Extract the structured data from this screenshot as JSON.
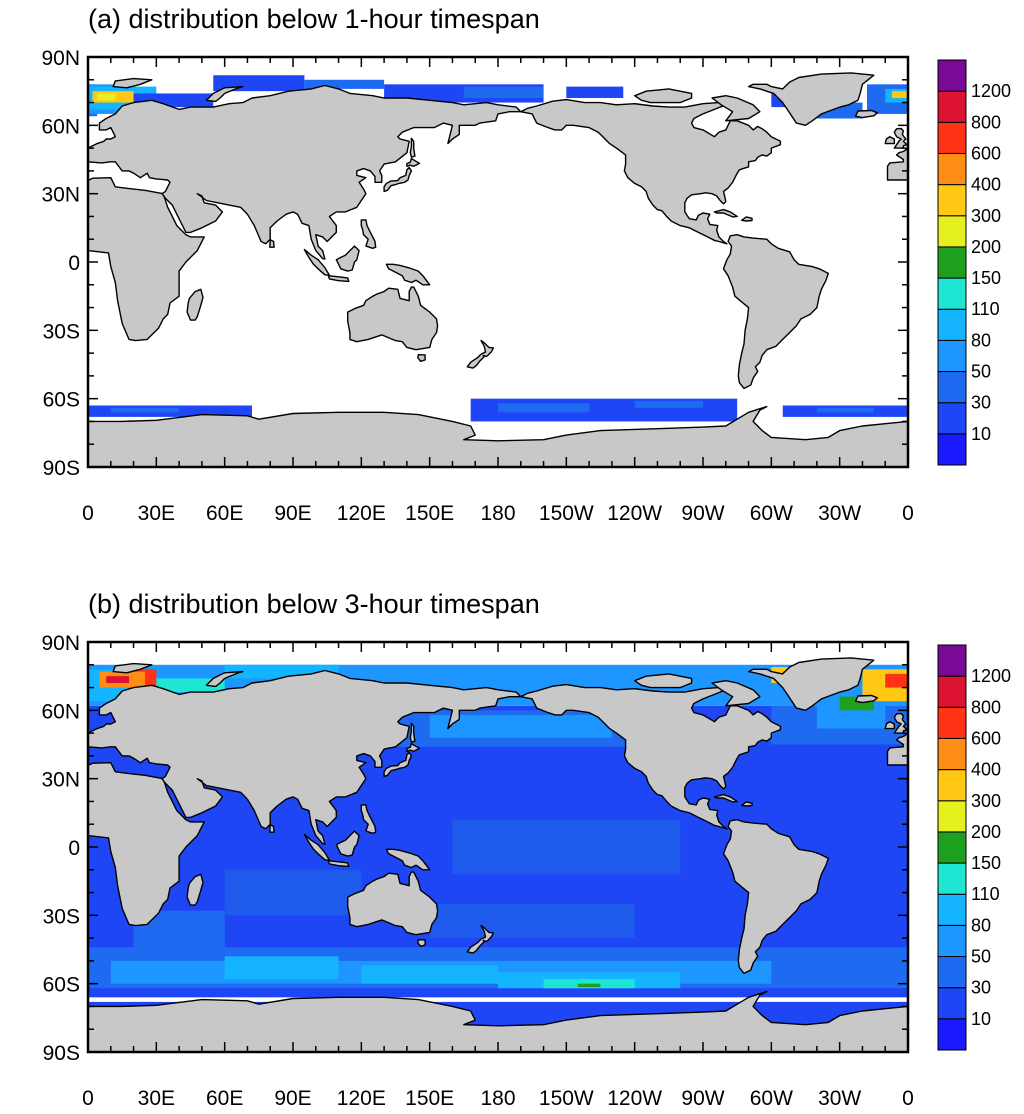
{
  "panels": [
    {
      "title": "(a) distribution below 1-hour timespan",
      "regime": "1h",
      "colorbar_labels": [
        "10",
        "30",
        "50",
        "80",
        "110",
        "150",
        "200",
        "300",
        "400",
        "600",
        "800",
        "1200"
      ]
    },
    {
      "title": "(b) distribution below 3-hour timespan",
      "regime": "3h",
      "colorbar_labels": [
        "10",
        "30",
        "50",
        "80",
        "110",
        "150",
        "200",
        "300",
        "400",
        "600",
        "800",
        "1200"
      ]
    }
  ],
  "lat_ticks": [
    "90N",
    "60N",
    "30N",
    "0",
    "30S",
    "60S",
    "90S"
  ],
  "lon_ticks": [
    "0",
    "30E",
    "60E",
    "90E",
    "120E",
    "150E",
    "180",
    "150W",
    "120W",
    "90W",
    "60W",
    "30W",
    "0"
  ],
  "colorbar_colors": [
    "#1a1aff",
    "#1e46f5",
    "#1e6af0",
    "#1e96ff",
    "#14b4ff",
    "#1ee6d2",
    "#1ea01e",
    "#e6f01e",
    "#ffc814",
    "#ff8c14",
    "#ff3214",
    "#dc1432",
    "#780a96"
  ],
  "land_color": "#c8c8c8",
  "ocean_color": "#ffffff",
  "chart_data": {
    "type": "heatmap",
    "projection": "cylindrical equidistant, centered 180",
    "xrange": [
      "0",
      "0 (360)"
    ],
    "yrange": [
      "90S",
      "90N"
    ],
    "legend_placement": "right",
    "levels": [
      10,
      30,
      50,
      80,
      110,
      150,
      200,
      300,
      400,
      600,
      800,
      1200
    ]
  }
}
